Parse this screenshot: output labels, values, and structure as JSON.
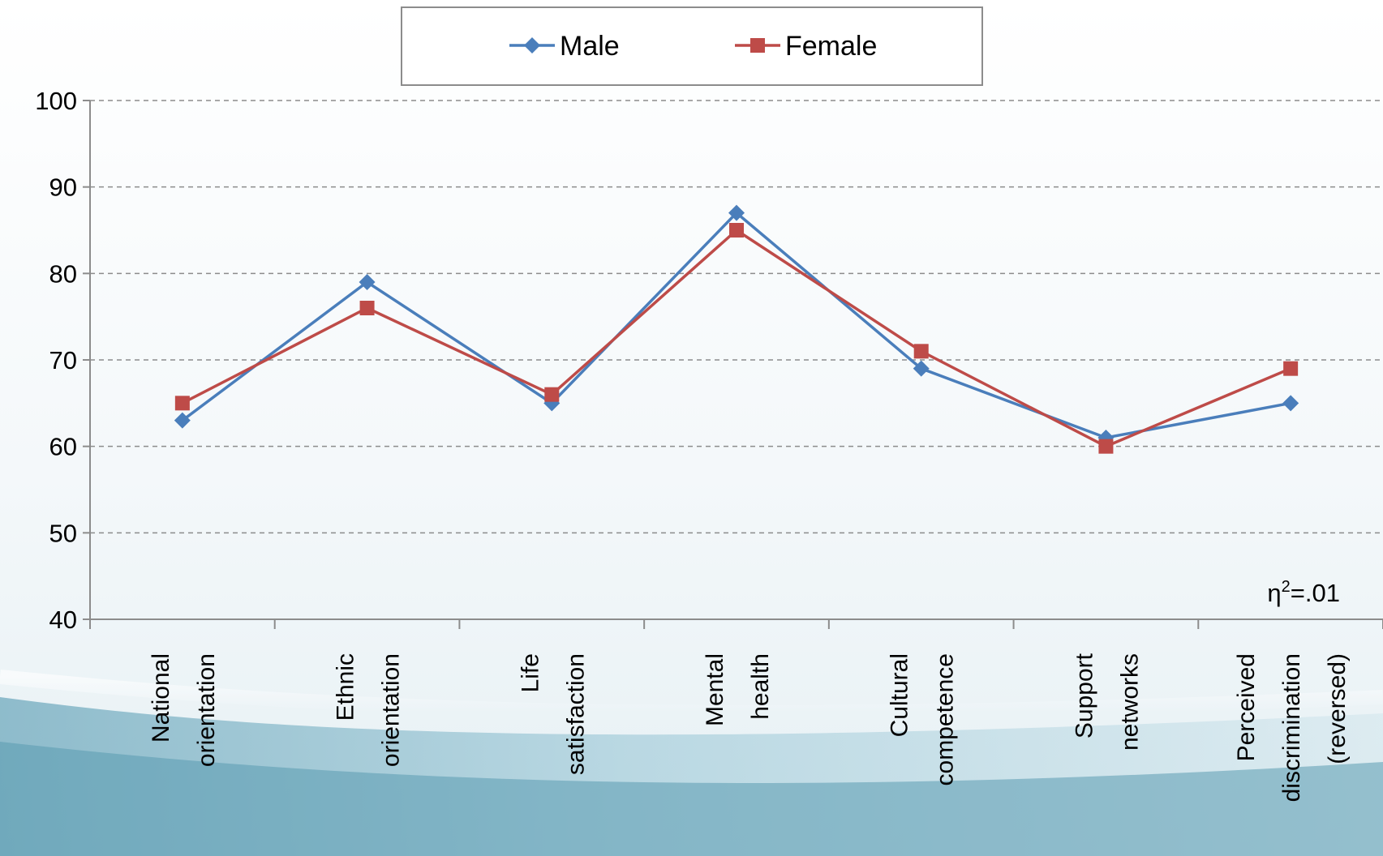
{
  "chart_data": {
    "type": "line",
    "categories": [
      [
        "National",
        "orientation"
      ],
      [
        "Ethnic",
        "orientation"
      ],
      [
        "Life",
        "satisfaction"
      ],
      [
        "Mental",
        "health"
      ],
      [
        "Cultural",
        "competence"
      ],
      [
        "Support",
        "networks"
      ],
      [
        "Perceived",
        "discrimination",
        "(reversed)"
      ]
    ],
    "series": [
      {
        "name": "Male",
        "color": "#4a7ebb",
        "marker": "diamond",
        "values": [
          63,
          79,
          65,
          87,
          69,
          61,
          65
        ]
      },
      {
        "name": "Female",
        "color": "#be4b48",
        "marker": "square",
        "values": [
          65,
          76,
          66,
          85,
          71,
          60,
          69
        ]
      }
    ],
    "ylim": [
      40,
      100
    ],
    "yticks": [
      40,
      50,
      60,
      70,
      80,
      90,
      100
    ],
    "grid": "horizontal-dashed",
    "legend": "top-center",
    "annotation": {
      "base": "η",
      "sup": "2",
      "rest": "=.01"
    }
  }
}
